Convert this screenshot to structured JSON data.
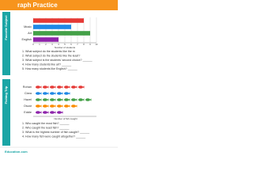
{
  "title": "raph Practice",
  "chart_data": [
    {
      "type": "bar",
      "side_label": "Favorite Subject",
      "categories": [
        null,
        "Music",
        "Art",
        "English"
      ],
      "values": [
        8,
        6,
        9,
        4
      ],
      "colors": [
        "#e53935",
        "#1e88e5",
        "#43a047",
        "#8e24aa"
      ],
      "xlabel": "Number of students",
      "xlim": [
        0,
        10
      ],
      "xticks": [
        0,
        1,
        2,
        3,
        4,
        5,
        6,
        7,
        8,
        9,
        10
      ],
      "grid": true,
      "questions": [
        "1. What subject do the students like the m",
        "2. What subject do the students like the least?",
        "3. What subject is the students' second choice? ______",
        "4. How many students like art? ______",
        "5. How many students like English? ______"
      ]
    },
    {
      "type": "pictograph",
      "side_label": "Fishing Trip",
      "categories": [
        "Rohan",
        "Clara",
        "Hazel",
        "Oscar",
        "Eddie"
      ],
      "values": [
        7,
        5,
        8,
        6,
        4
      ],
      "colors": [
        "#e53935",
        "#1e88e5",
        "#43a047",
        "#fb8c00",
        "#8e24aa"
      ],
      "xlabel": "Number of fish caught",
      "questions": [
        "1. Who caught the most fish? ______",
        "2. Who caught the least fish? ______",
        "3. What is the highest number of fish caught? ______",
        "4. How many fish were caught altogether? ______"
      ]
    }
  ],
  "footer": "Education.com"
}
